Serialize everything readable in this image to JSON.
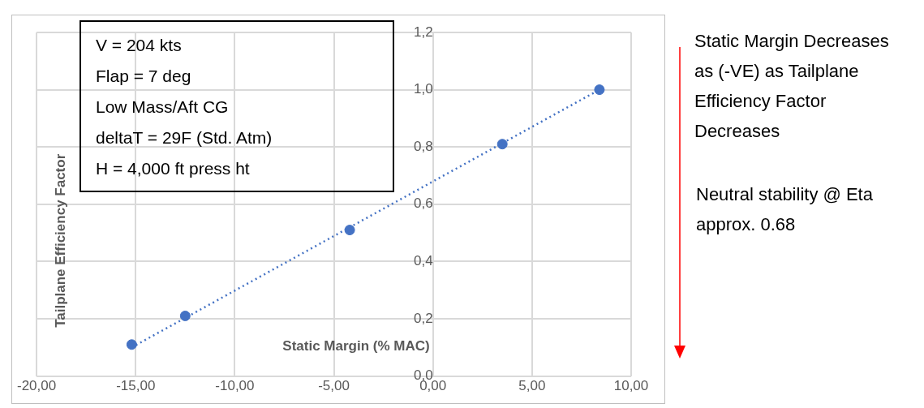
{
  "chart_data": {
    "type": "scatter",
    "xlabel": "Static Margin (% MAC)",
    "ylabel": "Tailplane Efficiency Factor",
    "series": [
      {
        "type": "scatter",
        "color": "#4472c4",
        "x": [
          -15.2,
          -12.5,
          -4.2,
          3.5,
          8.4
        ],
        "values": [
          0.11,
          0.21,
          0.51,
          0.81,
          1.0
        ],
        "marker": "circle"
      },
      {
        "type": "line",
        "color": "#4472c4",
        "x": [
          -15.2,
          8.4
        ],
        "values": [
          0.1,
          1.0
        ],
        "line_style": "dotted",
        "marker": "none"
      }
    ],
    "xlim": [
      -20,
      10
    ],
    "xticks": [
      {
        "value": -20,
        "label": "-20,00"
      },
      {
        "value": -15,
        "label": "-15,00"
      },
      {
        "value": -10,
        "label": "-10,00"
      },
      {
        "value": -5,
        "label": "-5,00"
      },
      {
        "value": 0,
        "label": "0,00"
      },
      {
        "value": 5,
        "label": "5,00"
      },
      {
        "value": 10,
        "label": "10,00"
      }
    ],
    "ylim": [
      0,
      1.2
    ],
    "yticks": [
      {
        "value": 0,
        "label": "0,0"
      },
      {
        "value": 0.2,
        "label": "0,2"
      },
      {
        "value": 0.4,
        "label": "0,4"
      },
      {
        "value": 0.6,
        "label": "0,6"
      },
      {
        "value": 0.8,
        "label": "0,8"
      },
      {
        "value": 1.0,
        "label": "1,0"
      },
      {
        "value": 1.2,
        "label": "1,2"
      }
    ],
    "grid": true,
    "legend": false,
    "annotations": [
      "V = 204 kts\nFlap = 7 deg\nLow Mass/Aft CG\ndeltaT = 29F (Std. Atm)\nH = 4,000 ft press ht",
      "Static Margin Decreases as (-VE) as Tailplane Efficiency Factor Decreases",
      "Neutral stability @ Eta approx. 0.68"
    ]
  }
}
